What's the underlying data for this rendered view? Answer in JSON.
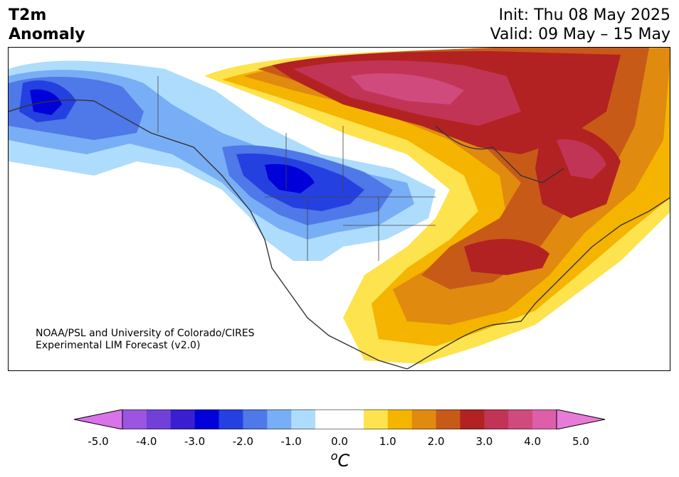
{
  "header": {
    "variable_line1": "T2m",
    "variable_line2": "Anomaly",
    "init": "Init: Thu 08 May 2025",
    "valid": "Valid: 09 May – 15 May"
  },
  "credit": {
    "line1": "NOAA/PSL and University of Colorado/CIRES",
    "line2": "Experimental LIM Forecast (v2.0)"
  },
  "colorbar": {
    "units_symbol": "o",
    "units_letter": "C",
    "tick_labels": [
      "-5.0",
      "-4.0",
      "-3.0",
      "-2.0",
      "-1.0",
      "0.0",
      "1.0",
      "2.0",
      "3.0",
      "4.0",
      "5.0"
    ],
    "colors": [
      "#9b55e0",
      "#7040d8",
      "#3a1fd0",
      "#0000d8",
      "#2540e0",
      "#4f78e8",
      "#78aef5",
      "#aedcfc",
      "#ffffff",
      "#ffffff",
      "#fde34e",
      "#f4b400",
      "#e08a10",
      "#c85a18",
      "#b22222",
      "#c23455",
      "#d04a7e",
      "#dd5faa"
    ],
    "under_color": "#d873e8",
    "over_color": "#e87ad8"
  }
}
